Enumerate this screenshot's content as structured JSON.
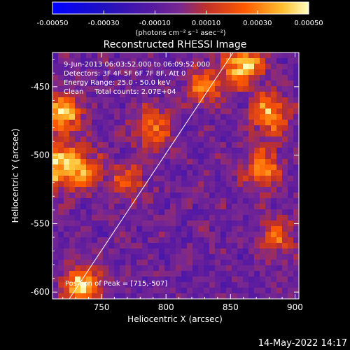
{
  "chart_data": {
    "type": "heatmap",
    "title": "Reconstructed RHESSI Image",
    "xlabel": "Heliocentric X (arcsec)",
    "ylabel": "Heliocentric Y (arcsec)",
    "x_ticks": [
      750,
      800,
      850,
      900
    ],
    "y_ticks": [
      -450,
      -500,
      -550,
      -600
    ],
    "xlim": [
      712,
      903
    ],
    "ylim": [
      -605,
      -425
    ],
    "colorbar": {
      "ticks": [
        "-0.00050",
        "-0.00030",
        "-0.00010",
        "0.00010",
        "0.00030",
        "0.00050"
      ],
      "unit_label": "(photons cm⁻² s⁻¹ asec⁻²)",
      "range": [
        -0.0005,
        0.0005
      ]
    },
    "annotations": [
      "9-Jun-2013 06:03:52.000 to 06:09:52.000",
      "Detectors: 3F 4F 5F 6F 7F 8F, Att 0",
      "Energy Range: 25.0 - 50.0 keV",
      "Clean     Total counts: 2.07E+04"
    ],
    "peak_label": "Position of Peak = [715,-507]",
    "limb_line": [
      [
        725,
        -605
      ],
      [
        852,
        -425
      ]
    ],
    "timestamp": "14-May-2022 14:17",
    "hot_regions": [
      {
        "x": 720,
        "y": -470,
        "value": 0.00045
      },
      {
        "x": 735,
        "y": -510,
        "value": 0.00035
      },
      {
        "x": 715,
        "y": -507,
        "value": 0.0005
      },
      {
        "x": 790,
        "y": -480,
        "value": 0.00033
      },
      {
        "x": 770,
        "y": -520,
        "value": 0.00025
      },
      {
        "x": 860,
        "y": -435,
        "value": 0.00048
      },
      {
        "x": 880,
        "y": -470,
        "value": 0.0004
      },
      {
        "x": 875,
        "y": -510,
        "value": 0.00035
      },
      {
        "x": 885,
        "y": -560,
        "value": 0.00025
      },
      {
        "x": 735,
        "y": -595,
        "value": 0.00045
      },
      {
        "x": 830,
        "y": -450,
        "value": 0.0003
      }
    ]
  }
}
